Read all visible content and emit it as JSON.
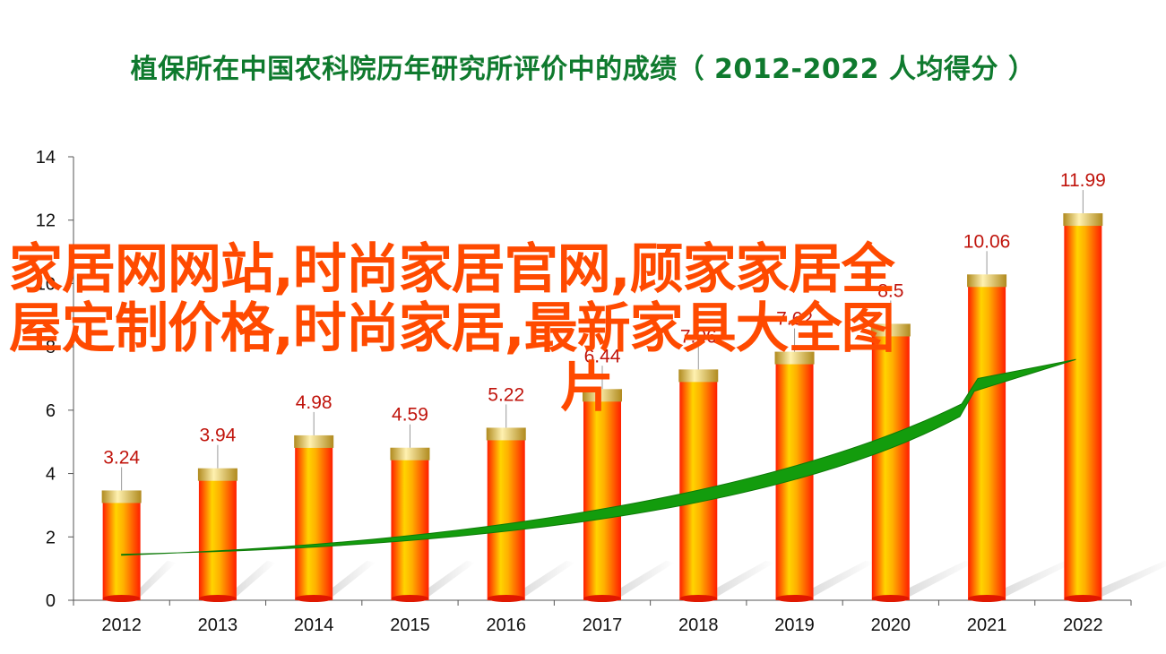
{
  "chart_data": {
    "type": "bar",
    "title": "植保所在中国农科院历年研究所评价中的成绩（ 2012-2022  人均得分 ）",
    "xlabel": "",
    "ylabel": "",
    "categories": [
      "2012",
      "2013",
      "2014",
      "2015",
      "2016",
      "2017",
      "2018",
      "2019",
      "2020",
      "2021",
      "2022"
    ],
    "values": [
      3.24,
      3.94,
      4.98,
      4.59,
      5.22,
      6.44,
      7.06,
      7.62,
      8.5,
      10.06,
      11.99
    ],
    "value_labels": [
      "3.24",
      "3.94",
      "4.98",
      "4.59",
      "5.22",
      "6.44",
      "7.06",
      "7.62",
      "8.5",
      "10.06",
      "11.99"
    ],
    "ylim": [
      0,
      14
    ],
    "yticks": [
      0,
      2,
      4,
      6,
      8,
      10,
      12,
      14
    ],
    "ytick_labels": [
      "0",
      "2",
      "4",
      "6",
      "8",
      "10",
      "12",
      "14"
    ],
    "grid": false,
    "legend": "none",
    "colors": {
      "title": "#0f7a2e",
      "bar_light": "#ffd200",
      "bar_dark": "#ff2a00",
      "cap": "#e8c44a",
      "label": "#c0140c",
      "arrow": "#129b0c"
    }
  },
  "watermark": {
    "line1": "家居网网站,时尚家居官网,顾家家居全",
    "line2": "屋定制价格,时尚家居,最新家具大全图",
    "line3": "片",
    "color": "#ff4a00"
  }
}
